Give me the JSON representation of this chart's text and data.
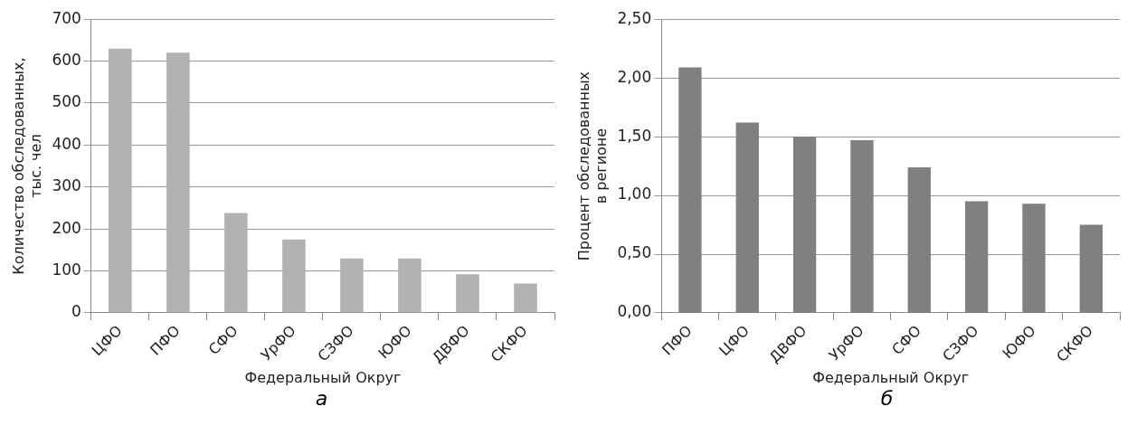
{
  "chart_data": [
    {
      "type": "bar",
      "xlabel": "Федеральный Округ",
      "ylabel": "Количество обследованных,\nтыс. чел",
      "categories": [
        "ЦФО",
        "ПФО",
        "СФО",
        "УрФО",
        "СЗФО",
        "ЮФО",
        "ДВФО",
        "СКФО"
      ],
      "values": [
        630,
        620,
        238,
        175,
        130,
        130,
        92,
        70
      ],
      "color": "#b2b2b2",
      "ylim": [
        0,
        700
      ],
      "yticks": [
        0,
        100,
        200,
        300,
        400,
        500,
        600,
        700
      ],
      "grid": "y",
      "annotations": [
        "а"
      ]
    },
    {
      "type": "bar",
      "xlabel": "Федеральный Округ",
      "ylabel": "Процент обследованных\nв регионе",
      "categories": [
        "ПФО",
        "ЦФО",
        "ДВФО",
        "УрФО",
        "СФО",
        "СЗФО",
        "ЮФО",
        "СКФО"
      ],
      "values": [
        2.09,
        1.62,
        1.5,
        1.47,
        1.24,
        0.95,
        0.93,
        0.75
      ],
      "color": "#808080",
      "ylim": [
        0,
        2.5
      ],
      "yticks": [
        {
          "value": 0,
          "label": "0,00"
        },
        {
          "value": 0.5,
          "label": "0,50"
        },
        {
          "value": 1,
          "label": "1,00"
        },
        {
          "value": 1.5,
          "label": "1,50"
        },
        {
          "value": 2,
          "label": "2,00"
        },
        {
          "value": 2.5,
          "label": "2,50"
        }
      ],
      "grid": "y",
      "annotations": [
        "б"
      ]
    }
  ]
}
